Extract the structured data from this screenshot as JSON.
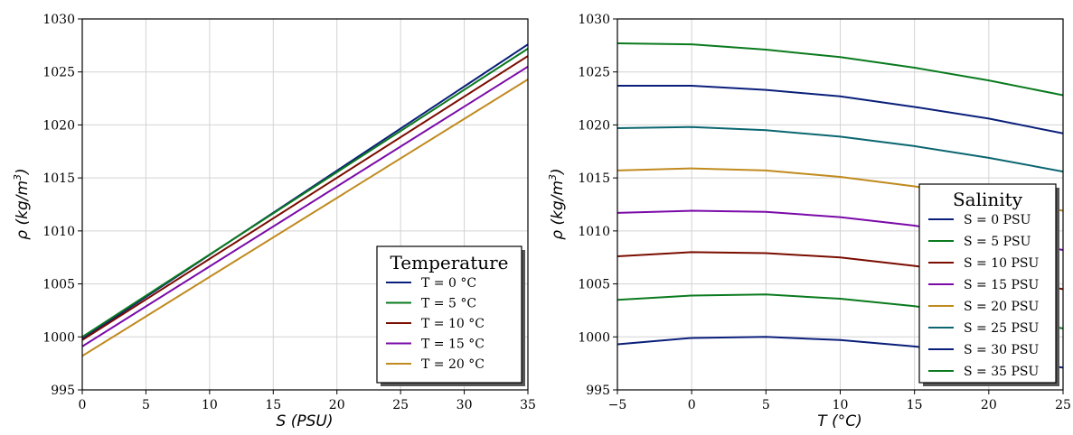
{
  "chart_data": [
    {
      "type": "line",
      "xlabel": "S (PSU)",
      "xlabel_var": "S",
      "xlabel_unit": "(PSU)",
      "ylabel": "ρ (kg/m³)",
      "ylabel_var": "ρ",
      "ylabel_unit_pre": "(",
      "ylabel_unit_base": "kg/m",
      "ylabel_unit_sup": "3",
      "ylabel_unit_post": ")",
      "xlim": [
        0,
        35
      ],
      "ylim": [
        995,
        1030
      ],
      "xticks": [
        0,
        5,
        10,
        15,
        20,
        25,
        30,
        35
      ],
      "yticks": [
        995,
        1000,
        1005,
        1010,
        1015,
        1020,
        1025,
        1030
      ],
      "grid": true,
      "legend": {
        "title": "Temperature",
        "position": "lower-right"
      },
      "series": [
        {
          "name": "T = 0 °C",
          "color": "#0a1f7a",
          "x": [
            0,
            35
          ],
          "y": [
            999.8,
            1027.6
          ]
        },
        {
          "name": "T = 5 °C",
          "color": "#0a7a1e",
          "x": [
            0,
            35
          ],
          "y": [
            1000.0,
            1027.2
          ]
        },
        {
          "name": "T = 10 °C",
          "color": "#7a0c00",
          "x": [
            0,
            35
          ],
          "y": [
            999.7,
            1026.5
          ]
        },
        {
          "name": "T = 15 °C",
          "color": "#7a0aa8",
          "x": [
            0,
            35
          ],
          "y": [
            999.1,
            1025.5
          ]
        },
        {
          "name": "T = 20 °C",
          "color": "#c08a1e",
          "x": [
            0,
            35
          ],
          "y": [
            998.2,
            1024.3
          ]
        }
      ]
    },
    {
      "type": "line",
      "xlabel": "T (°C)",
      "xlabel_var": "T",
      "xlabel_unit": "(°C)",
      "ylabel": "ρ (kg/m³)",
      "ylabel_var": "ρ",
      "ylabel_unit_pre": "(",
      "ylabel_unit_base": "kg/m",
      "ylabel_unit_sup": "3",
      "ylabel_unit_post": ")",
      "xlim": [
        -5,
        25
      ],
      "ylim": [
        995,
        1030
      ],
      "xticks": [
        -5,
        0,
        5,
        10,
        15,
        20,
        25
      ],
      "xtick_labels": [
        "−5",
        "0",
        "5",
        "10",
        "15",
        "20",
        "25"
      ],
      "yticks": [
        995,
        1000,
        1005,
        1010,
        1015,
        1020,
        1025,
        1030
      ],
      "grid": true,
      "legend": {
        "title": "Salinity",
        "position": "center-right"
      },
      "x": [
        -5,
        0,
        5,
        10,
        15,
        20,
        25
      ],
      "series": [
        {
          "name": "S = 0 PSU",
          "color": "#0a1f7a",
          "values": [
            999.3,
            999.9,
            1000.0,
            999.7,
            999.1,
            998.2,
            997.1
          ]
        },
        {
          "name": "S = 5 PSU",
          "color": "#0a7a1e",
          "values": [
            1003.5,
            1003.9,
            1004.0,
            1003.6,
            1002.9,
            1001.9,
            1000.8
          ]
        },
        {
          "name": "S = 10 PSU",
          "color": "#7a0c00",
          "values": [
            1007.6,
            1008.0,
            1007.9,
            1007.5,
            1006.7,
            1005.7,
            1004.5
          ]
        },
        {
          "name": "S = 15 PSU",
          "color": "#7a0aa8",
          "values": [
            1011.7,
            1011.9,
            1011.8,
            1011.3,
            1010.5,
            1009.4,
            1008.2
          ]
        },
        {
          "name": "S = 20 PSU",
          "color": "#c08a1e",
          "values": [
            1015.7,
            1015.9,
            1015.7,
            1015.1,
            1014.2,
            1013.1,
            1011.9
          ]
        },
        {
          "name": "S = 25 PSU",
          "color": "#0a6670",
          "values": [
            1019.7,
            1019.8,
            1019.5,
            1018.9,
            1018.0,
            1016.9,
            1015.6
          ]
        },
        {
          "name": "S = 30 PSU",
          "color": "#0a1f7a",
          "values": [
            1023.7,
            1023.7,
            1023.3,
            1022.7,
            1021.7,
            1020.6,
            1019.2
          ]
        },
        {
          "name": "S = 35 PSU",
          "color": "#0a7a1e",
          "values": [
            1027.7,
            1027.6,
            1027.1,
            1026.4,
            1025.4,
            1024.2,
            1022.8
          ]
        }
      ]
    }
  ]
}
